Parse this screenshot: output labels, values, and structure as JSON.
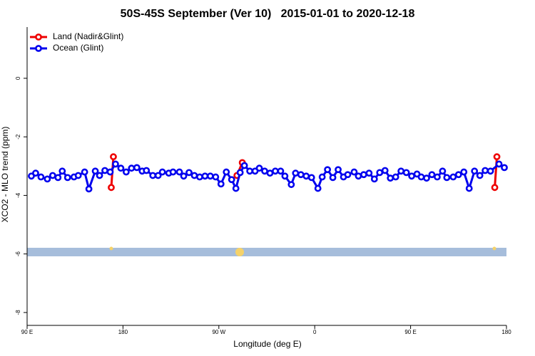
{
  "chart_data": {
    "type": "line",
    "title": "50S-45S September (Ver 10)   2015-01-01 to 2020-12-18",
    "x_label": "Longitude (deg E)",
    "y_label": "XCO2 - MLO trend (ppm)",
    "xlim": [
      90,
      540
    ],
    "xticks": [
      {
        "value": 90,
        "label": "90 E"
      },
      180,
      {
        "value": 270,
        "label": "90 W"
      },
      {
        "value": 360,
        "label": "0"
      },
      {
        "value": 450,
        "label": "90 E"
      },
      {
        "value": 540,
        "label": "180"
      }
    ],
    "ylim": [
      -8.44,
      1.75
    ],
    "yticks": [
      0,
      -2,
      -4,
      -6,
      -8
    ],
    "legend": "top-left",
    "series": [
      {
        "name": "Land (Nadir&Glint)",
        "color": "#ee0000",
        "x": [
          169,
          171,
          null,
          287,
          292,
          null,
          529,
          531
        ],
        "values": [
          -3.73,
          -2.68,
          null,
          -3.32,
          -2.88,
          null,
          -3.73,
          -2.68
        ]
      },
      {
        "name": "Ocean (Glint)",
        "color": "#0000ee",
        "x": [
          94,
          98,
          103,
          109,
          114,
          119,
          123,
          128,
          134,
          138,
          144,
          148,
          154,
          158,
          163,
          168,
          173,
          178,
          183,
          188,
          193,
          198,
          202,
          208,
          213,
          217,
          223,
          227,
          233,
          237,
          242,
          247,
          252,
          257,
          262,
          267,
          272,
          277,
          282,
          286,
          290,
          294,
          299,
          304,
          308,
          313,
          318,
          323,
          328,
          332,
          338,
          342,
          347,
          352,
          357,
          363,
          367,
          372,
          377,
          382,
          387,
          391,
          397,
          401,
          406,
          411,
          416,
          421,
          426,
          431,
          436,
          441,
          446,
          451,
          456,
          460,
          465,
          470,
          475,
          480,
          484,
          490,
          495,
          500,
          505,
          510,
          515,
          520,
          525,
          533,
          538
        ],
        "values": [
          -3.34,
          -3.24,
          -3.37,
          -3.44,
          -3.32,
          -3.39,
          -3.17,
          -3.39,
          -3.37,
          -3.32,
          -3.2,
          -3.78,
          -3.17,
          -3.32,
          -3.15,
          -3.2,
          -2.93,
          -3.07,
          -3.2,
          -3.07,
          -3.05,
          -3.17,
          -3.15,
          -3.32,
          -3.32,
          -3.2,
          -3.24,
          -3.2,
          -3.2,
          -3.34,
          -3.22,
          -3.32,
          -3.37,
          -3.34,
          -3.34,
          -3.37,
          -3.61,
          -3.2,
          -3.46,
          -3.76,
          -3.22,
          -2.98,
          -3.17,
          -3.17,
          -3.07,
          -3.17,
          -3.24,
          -3.17,
          -3.17,
          -3.34,
          -3.63,
          -3.24,
          -3.29,
          -3.34,
          -3.39,
          -3.76,
          -3.37,
          -3.12,
          -3.39,
          -3.12,
          -3.37,
          -3.29,
          -3.2,
          -3.34,
          -3.29,
          -3.24,
          -3.44,
          -3.22,
          -3.15,
          -3.41,
          -3.37,
          -3.17,
          -3.22,
          -3.34,
          -3.27,
          -3.37,
          -3.41,
          -3.29,
          -3.37,
          -3.17,
          -3.39,
          -3.37,
          -3.29,
          -3.2,
          -3.76,
          -3.17,
          -3.32,
          -3.15,
          -3.17,
          -2.93,
          -3.05
        ]
      }
    ]
  }
}
